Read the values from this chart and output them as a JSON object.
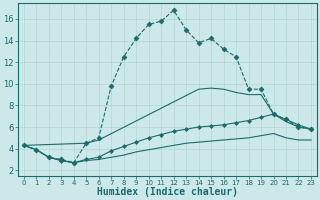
{
  "xlabel": "Humidex (Indice chaleur)",
  "bg_color": "#cce8e8",
  "grid_color": "#b8d8d8",
  "line_color": "#1a6b6b",
  "xlim": [
    -0.5,
    23.5
  ],
  "ylim": [
    1.5,
    17.5
  ],
  "yticks": [
    2,
    4,
    6,
    8,
    10,
    12,
    14,
    16
  ],
  "xticks": [
    0,
    1,
    2,
    3,
    4,
    5,
    6,
    7,
    8,
    9,
    10,
    11,
    12,
    13,
    14,
    15,
    16,
    17,
    18,
    19,
    20,
    21,
    22,
    23
  ],
  "series": [
    {
      "x": [
        0,
        1,
        2,
        3,
        4,
        5,
        6,
        7,
        8,
        9,
        10,
        11,
        12,
        13,
        14,
        15,
        16,
        17,
        18,
        19,
        20,
        21,
        22,
        23
      ],
      "y": [
        4.3,
        3.9,
        3.2,
        3.0,
        2.7,
        4.5,
        5.0,
        9.8,
        12.5,
        14.2,
        15.5,
        15.8,
        16.8,
        15.0,
        13.8,
        14.2,
        13.2,
        12.5,
        9.5,
        9.5,
        7.2,
        6.7,
        6.0,
        5.8
      ],
      "linestyle": "--",
      "marker": "D",
      "markersize": 2.5
    },
    {
      "x": [
        0,
        5,
        6,
        14,
        15,
        16,
        17,
        18,
        19,
        20,
        21,
        22,
        23
      ],
      "y": [
        4.3,
        4.5,
        4.8,
        9.5,
        9.6,
        9.5,
        9.2,
        9.0,
        9.0,
        7.2,
        6.5,
        6.0,
        5.8
      ],
      "linestyle": "-",
      "marker": null,
      "markersize": 0
    },
    {
      "x": [
        0,
        1,
        2,
        3,
        4,
        5,
        6,
        7,
        8,
        9,
        10,
        11,
        12,
        13,
        14,
        15,
        16,
        17,
        18,
        19,
        20,
        21,
        22,
        23
      ],
      "y": [
        4.3,
        3.9,
        3.2,
        2.9,
        2.7,
        3.0,
        3.2,
        3.8,
        4.2,
        4.6,
        5.0,
        5.3,
        5.6,
        5.8,
        6.0,
        6.1,
        6.2,
        6.4,
        6.6,
        6.9,
        7.2,
        6.7,
        6.2,
        5.8
      ],
      "linestyle": "-",
      "marker": "D",
      "markersize": 2.0
    },
    {
      "x": [
        0,
        1,
        2,
        3,
        4,
        5,
        6,
        7,
        8,
        9,
        10,
        11,
        12,
        13,
        14,
        15,
        16,
        17,
        18,
        19,
        20,
        21,
        22,
        23
      ],
      "y": [
        4.3,
        3.9,
        3.2,
        2.9,
        2.7,
        2.9,
        3.0,
        3.2,
        3.4,
        3.7,
        3.9,
        4.1,
        4.3,
        4.5,
        4.6,
        4.7,
        4.8,
        4.9,
        5.0,
        5.2,
        5.4,
        5.0,
        4.8,
        4.8
      ],
      "linestyle": "-",
      "marker": null,
      "markersize": 0
    }
  ]
}
